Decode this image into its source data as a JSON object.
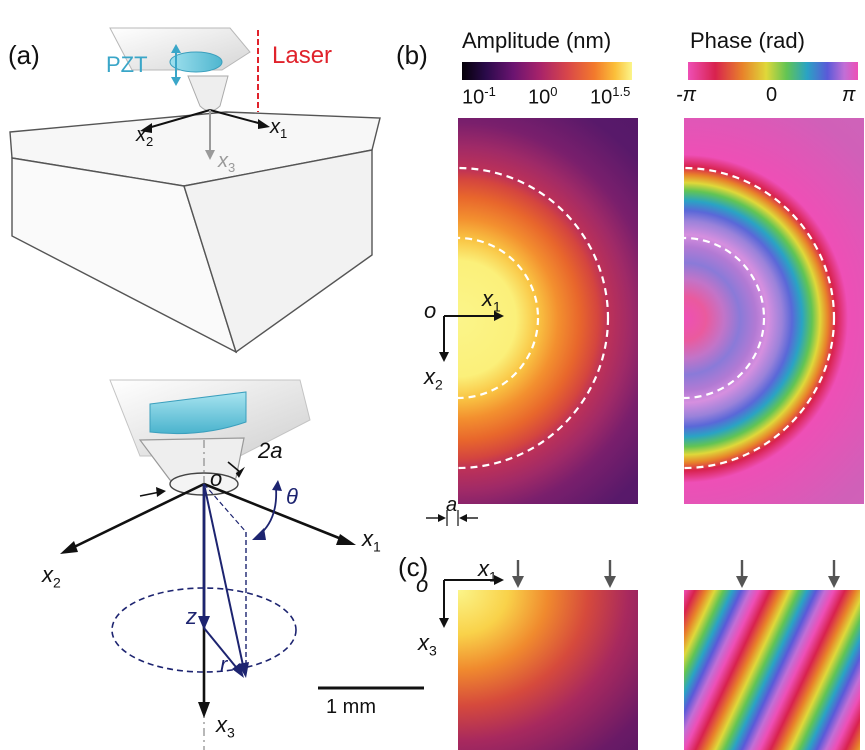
{
  "panels": {
    "a": "(a)",
    "b": "(b)",
    "c": "(c)"
  },
  "top_schematic": {
    "pzt": "PZT",
    "laser": "Laser",
    "x1": "x",
    "x1_sub": "1",
    "x2": "x",
    "x2_sub": "2",
    "x3": "x",
    "x3_sub": "3"
  },
  "bottom_schematic": {
    "label_2a": "2a",
    "origin": "o",
    "theta": "θ",
    "x1": "x",
    "x1_sub": "1",
    "x2": "x",
    "x2_sub": "2",
    "x3": "x",
    "x3_sub": "3",
    "z": "z",
    "r": "r"
  },
  "amplitude_scale": {
    "title": "Amplitude (nm)",
    "tick_low": "10",
    "tick_low_exp": "-1",
    "tick_mid": "10",
    "tick_mid_exp": "0",
    "tick_high": "10",
    "tick_high_exp": "1.5"
  },
  "phase_scale": {
    "title": "Phase (rad)",
    "tick_low": "-π",
    "tick_mid": "0",
    "tick_high": "π"
  },
  "map_axes_b": {
    "origin": "o",
    "x1": "x",
    "x1_sub": "1",
    "x2": "x",
    "x2_sub": "2",
    "a_label": "a"
  },
  "map_axes_c": {
    "origin": "o",
    "x1": "x",
    "x1_sub": "1",
    "x3": "x",
    "x3_sub": "3"
  },
  "scale_bar": {
    "label": "1 mm"
  },
  "colors": {
    "pzt": "#3aa6c8",
    "laser": "#e0222b",
    "vector": "#1d2470",
    "axis_gray": "#9a9a9a"
  }
}
